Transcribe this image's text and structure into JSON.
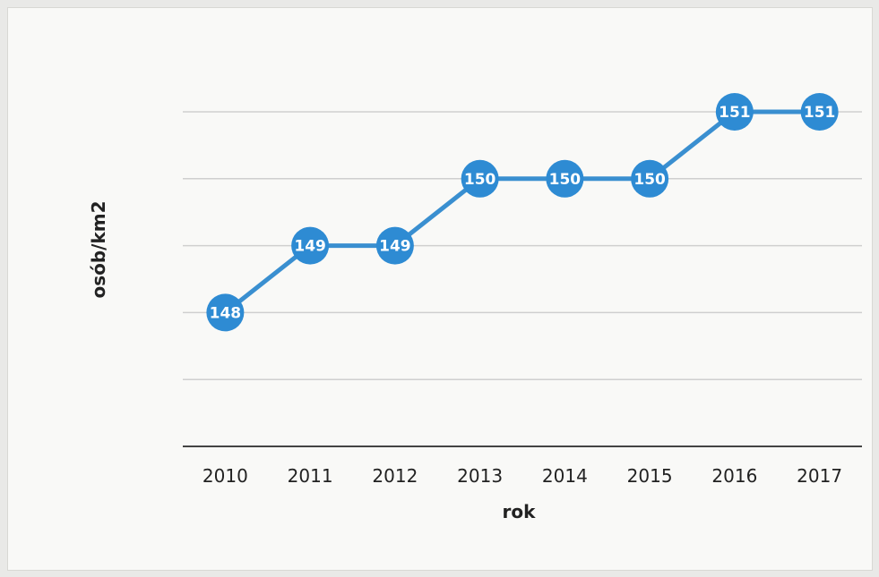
{
  "chart_data": {
    "type": "line",
    "title": "",
    "xlabel": "rok",
    "ylabel": "osób/km2",
    "categories": [
      "2010",
      "2011",
      "2012",
      "2013",
      "2014",
      "2015",
      "2016",
      "2017"
    ],
    "series": [
      {
        "values": [
          148,
          149,
          149,
          150,
          150,
          150,
          151,
          151
        ]
      }
    ],
    "ylim": [
      146,
      151
    ],
    "grid": true,
    "legend": "none",
    "data_labels": [
      "148",
      "149",
      "149",
      "150",
      "150",
      "150",
      "151",
      "151"
    ],
    "colors": {
      "line": "#3a8fd0",
      "marker": "#2e8bd3",
      "gridline": "#cfcfcf",
      "baseline": "#444444"
    }
  }
}
